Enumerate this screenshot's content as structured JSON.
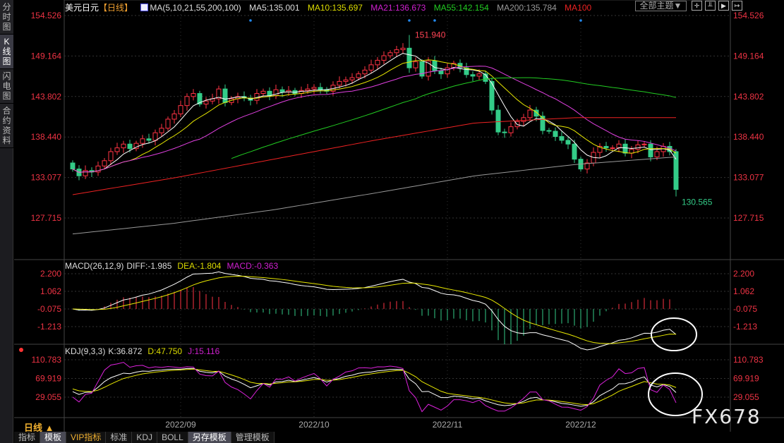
{
  "sidebar": {
    "items": [
      {
        "label": "分时图"
      },
      {
        "label": "K线图",
        "active": true
      },
      {
        "label": "闪电图"
      },
      {
        "label": "合约资料"
      }
    ]
  },
  "header": {
    "title": "美元日元",
    "period_tag": "【日线】",
    "ma_label": "MA(5,10,21,55,200,100)",
    "ma5": "MA5:135.001",
    "ma10": "MA10:135.697",
    "ma21": "MA21:136.673",
    "ma55": "MA55:142.154",
    "ma200": "MA200:135.784",
    "ma100": "MA100",
    "theme_button": "全部主题▼",
    "icon": "chart-icon"
  },
  "toolbar": {
    "icons": [
      "crosshair-icon",
      "zoom-fit-icon",
      "play-icon",
      "jump-end-icon"
    ]
  },
  "colors": {
    "up": "#ff3344",
    "down": "#33cc88",
    "ma5": "#ffffff",
    "ma10": "#e8e800",
    "ma21": "#e040e0",
    "ma55": "#22cc22",
    "ma200": "#999999",
    "ma100": "#ee2222",
    "axis": "#ee3344"
  },
  "macd": {
    "label": "MACD(26,12,9)",
    "diff": "DIFF:-1.985",
    "dea": "DEA:-1.804",
    "macd": "MACD:-0.363"
  },
  "kdj": {
    "label": "KDJ(9,3,3)",
    "k": "K:36.872",
    "d": "D:47.750",
    "j": "J:15.116"
  },
  "bottom": {
    "period": "日线 ▲",
    "tabs": [
      {
        "label": "指标"
      },
      {
        "label": "模板",
        "active": true
      },
      {
        "label": "VIP指标",
        "vip": true
      },
      {
        "label": "标准"
      },
      {
        "label": "KDJ"
      },
      {
        "label": "BOLL"
      },
      {
        "label": "另存模板",
        "active": true
      },
      {
        "label": "管理模板"
      }
    ]
  },
  "watermark": "FX678",
  "chart_data": [
    {
      "type": "candlestick",
      "title": "美元日元 日线",
      "price_ticks": [
        "154.526",
        "149.164",
        "143.802",
        "138.440",
        "133.077",
        "127.715"
      ],
      "ylim": [
        127.715,
        154.526
      ],
      "x_ticks": [
        "2022/09",
        "2022/10",
        "2022/11",
        "2022/12"
      ],
      "x_tick_index": [
        17,
        38,
        59,
        80
      ],
      "closes": [
        134.2,
        133.3,
        134.0,
        133.8,
        134.6,
        135.3,
        136.5,
        137.0,
        137.5,
        136.9,
        137.6,
        138.2,
        138.0,
        139.0,
        139.6,
        140.8,
        141.5,
        142.6,
        143.8,
        144.2,
        142.8,
        143.2,
        143.5,
        144.8,
        143.0,
        143.5,
        143.8,
        143.6,
        143.3,
        144.2,
        144.5,
        143.9,
        144.7,
        144.4,
        144.6,
        144.2,
        144.6,
        144.8,
        145.0,
        144.7,
        144.5,
        145.3,
        145.8,
        146.0,
        146.3,
        146.8,
        147.3,
        148.0,
        148.6,
        149.2,
        149.6,
        150.0,
        150.2,
        147.6,
        148.4,
        146.5,
        148.5,
        147.2,
        146.8,
        147.6,
        148.2,
        147.6,
        146.7,
        146.5,
        146.8,
        145.8,
        142.0,
        139.1,
        139.0,
        139.8,
        140.5,
        141.0,
        142.0,
        141.2,
        139.3,
        139.2,
        138.5,
        138.0,
        137.5,
        135.5,
        134.2,
        135.0,
        136.4,
        137.2,
        137.0,
        137.0,
        137.5,
        136.3,
        136.8,
        137.4,
        137.5,
        135.8,
        136.5,
        137.2,
        136.5,
        131.5
      ],
      "first_open": 135.0,
      "annotations": {
        "high": "151.940",
        "high_index": 53,
        "low": "130.565",
        "low_index": 95
      },
      "ma100_keypoints": [
        130.8,
        133.0,
        135.5,
        138.0,
        140.3,
        141.0,
        141.0
      ],
      "ma200_keypoints": [
        125.6,
        127.0,
        128.8,
        131.0,
        133.3,
        134.8,
        135.8
      ],
      "ma55_end": 142.154
    },
    {
      "type": "macd",
      "ticks": [
        "2.200",
        "1.062",
        "-0.075",
        "-1.213"
      ],
      "ylim": [
        -1.213,
        2.2
      ]
    },
    {
      "type": "kdj",
      "ticks": [
        "110.783",
        "69.919",
        "29.055"
      ],
      "ylim": [
        29.055,
        110.783
      ]
    }
  ]
}
